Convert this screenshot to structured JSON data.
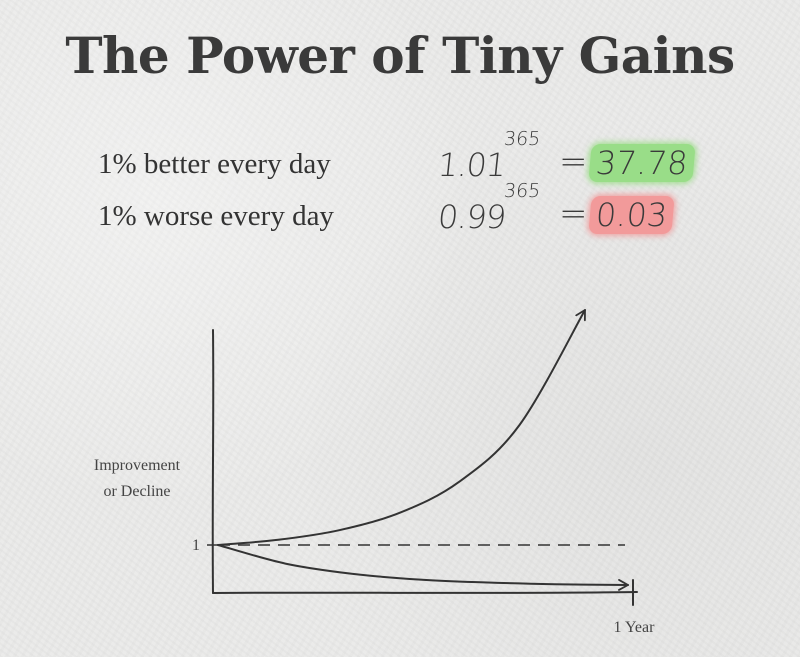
{
  "title": "The Power of Tiny Gains",
  "equations": [
    {
      "label": "1% better every day",
      "base": "1.01",
      "exponent": "365",
      "equals": "=",
      "result": "37.78",
      "highlight": "#99dd88"
    },
    {
      "label": "1% worse every day",
      "base": "0.99",
      "exponent": "365",
      "equals": "=",
      "result": "0.03",
      "highlight": "#f29a9a"
    }
  ],
  "chart_data": {
    "type": "line",
    "title": "",
    "ylabel": "Improvement or Decline",
    "ylabel_lines": [
      "Improvement",
      "or Decline"
    ],
    "xlabel": "",
    "x_tick_label": "1 Year",
    "y_tick_label": "1",
    "grid": false,
    "legend": "none",
    "baseline": {
      "y": 1,
      "style": "dashed"
    },
    "x": [
      0,
      60,
      120,
      180,
      240,
      300,
      365
    ],
    "series": [
      {
        "values": [
          1,
          1.82,
          3.3,
          6.0,
          10.9,
          19.8,
          37.78
        ]
      },
      {
        "values": [
          1,
          0.55,
          0.3,
          0.16,
          0.09,
          0.05,
          0.03
        ]
      }
    ],
    "color": "#333333"
  }
}
